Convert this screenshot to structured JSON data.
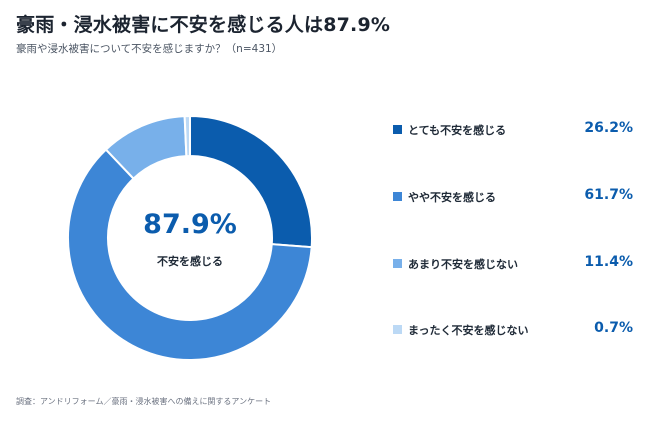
{
  "header": {
    "title": "豪雨・浸水被害に不安を感じる人は87.9%",
    "subtitle": "豪雨や浸水被害について不安を感じますか？（n=431）"
  },
  "center": {
    "value": "87.9%",
    "label": "不安を感じる"
  },
  "legend": [
    {
      "label": "とても不安を感じる",
      "value_text": "26.2%",
      "color": "#0b5cad"
    },
    {
      "label": "やや不安を感じる",
      "value_text": "61.7%",
      "color": "#3d86d6"
    },
    {
      "label": "あまり不安を感じない",
      "value_text": "11.4%",
      "color": "#78b0ea"
    },
    {
      "label": "まったく不安を感じない",
      "value_text": "0.7%",
      "color": "#bcd9f5"
    }
  ],
  "footnote": "調査：アンドリフォーム／豪雨・浸水被害への備えに関するアンケート",
  "chart_data": {
    "type": "pie",
    "categories": [
      "とても不安を感じる",
      "やや不安を感じる",
      "あまり不安を感じない",
      "まったく不安を感じない"
    ],
    "values": [
      26.2,
      61.7,
      11.4,
      0.7
    ],
    "colors": [
      "#0b5cad",
      "#3d86d6",
      "#78b0ea",
      "#bcd9f5"
    ],
    "donut": true
  }
}
